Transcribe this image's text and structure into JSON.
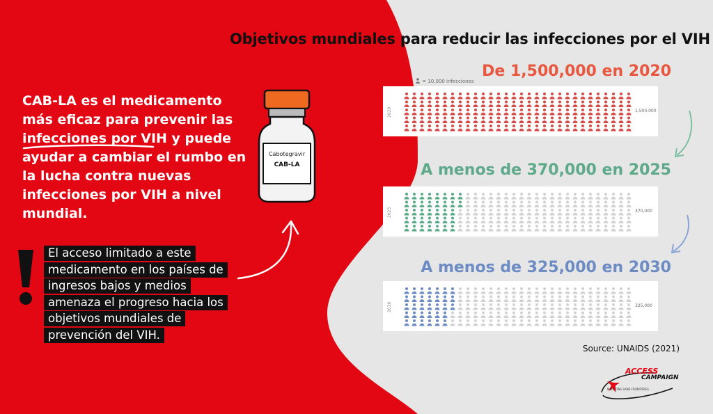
{
  "title": "Objetivos mundiales para reducir las infecciones por el VIH",
  "left_text": {
    "main_part1": "CAB-LA es el medicamento más eficaz para prevenir las ",
    "main_underlined": "infecciones por VIH",
    "main_part2": " y puede ayudar a cambiar el rumbo en la lucha contra nuevas infecciones por VIH a nivel mundial.",
    "warning_lines": [
      "El acceso limitado a este",
      "medicamento en los países de",
      "ingresos bajos y medios",
      "amenaza el progreso hacia los",
      "objetivos mundiales de",
      "prevención del VIH."
    ]
  },
  "vial": {
    "label_line1": "Cabotegravir",
    "label_line2": "CAB-LA"
  },
  "legend": {
    "icon": "person-icon",
    "text": "= 10,000 infecciones"
  },
  "source": "Source: UNAIDS (2021)",
  "logo": {
    "access": "ACCESS",
    "campaign": "CAMPAIGN",
    "msf": "MÉDECINS SANS FRONTIÈRES"
  },
  "colors": {
    "red_bg": "#e30613",
    "panel_2020": "#d44a46",
    "panel_2025": "#5baa88",
    "panel_2030": "#6d8cc4",
    "inactive": "#d2d2d2",
    "title_2020": "#e8573f",
    "title_2025": "#5fa98b",
    "title_2030": "#6d8cc4",
    "arrow_1": "#7cc0a0",
    "arrow_2": "#8aa4d6"
  },
  "chart_data": {
    "type": "pictogram",
    "unit_value": 10000,
    "unit_label": "= 10,000 infecciones",
    "grid_total_icons": 150,
    "series": [
      {
        "year": "2020",
        "title": "De 1,500,000 en 2020",
        "value": 1500000,
        "value_label": "1,500,000",
        "icons": 150
      },
      {
        "year": "2025",
        "title": "A menos de 370,000 en 2025",
        "value": 370000,
        "value_label": "370,000",
        "icons": 37
      },
      {
        "year": "2030",
        "title": "A menos de 325,000 en 2030",
        "value": 325000,
        "value_label": "325,000",
        "icons": 33
      }
    ]
  }
}
